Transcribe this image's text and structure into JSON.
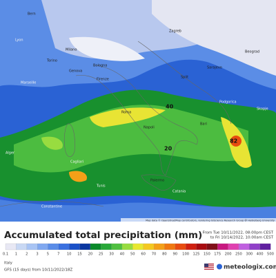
{
  "map": {
    "places": [
      "Bern",
      "Milano",
      "Torino",
      "Genova",
      "Bologna",
      "Firenze",
      "Zagreb",
      "Split",
      "Sarajevo",
      "Beograd",
      "Podgorica",
      "Skopje",
      "Roma",
      "Napoli",
      "Bari",
      "Palermo",
      "Catania",
      "Cagliari",
      "Lyon",
      "Marseille",
      "Tunis",
      "Constantine",
      "Alger"
    ],
    "amounts": [
      "40",
      "82",
      "20"
    ],
    "attribution": "Map data © OpenStreetMap contributors, rendering GIScience Research Group @ Heidelberg University"
  },
  "footer": {
    "title": "Accumulated total precipitation (mm)",
    "from": "From Tue 10/11/2022, 08:00pm CEST",
    "to": "to Fri 10/14/2022, 10:00am CEST",
    "region": "Italy",
    "model": "GFS (15 days) from 10/11/2022/18Z",
    "brand": "meteologix.com",
    "legend": {
      "ticks": [
        0.1,
        1,
        2,
        3,
        5,
        7,
        10,
        15,
        20,
        25,
        30,
        40,
        50,
        60,
        70,
        80,
        90,
        100,
        125,
        150,
        175,
        200,
        250,
        300,
        400,
        500
      ],
      "colors": [
        "#e8e8f4",
        "#c8d8f4",
        "#a8c4f4",
        "#80a8f0",
        "#5a8ce8",
        "#3a70e0",
        "#1a50c8",
        "#0a36a0",
        "#0a8a2a",
        "#28a838",
        "#50c040",
        "#98dc40",
        "#e8e830",
        "#f4c820",
        "#f4a018",
        "#f07810",
        "#e84c10",
        "#d02010",
        "#a80c10",
        "#801018",
        "#c81880",
        "#e040b0",
        "#c060e0",
        "#9040c8",
        "#6020a0"
      ]
    }
  }
}
